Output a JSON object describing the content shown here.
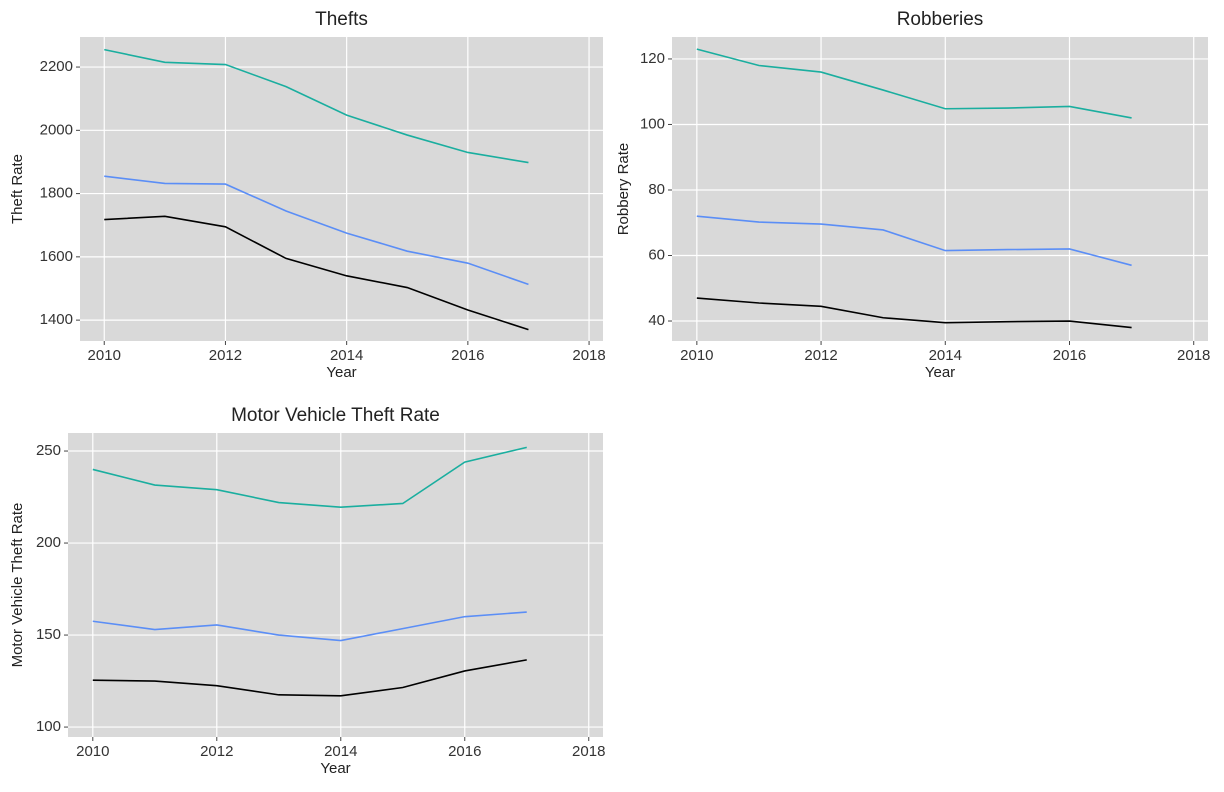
{
  "chart_data": [
    {
      "type": "line",
      "title": "Thefts",
      "x_label": "Year",
      "y_label": "Theft Rate",
      "x": [
        2010,
        2011,
        2012,
        2013,
        2014,
        2015,
        2016,
        2017
      ],
      "xlim": [
        2009.6,
        2018.23
      ],
      "xticks": [
        2010,
        2012,
        2014,
        2016,
        2018
      ],
      "ylim": [
        1334,
        2295
      ],
      "yticks": [
        1400,
        1600,
        1800,
        2000,
        2200
      ],
      "grid": true,
      "series": [
        {
          "color": "#1aae9f",
          "values": [
            2255,
            2215,
            2208,
            2138,
            2048,
            1985,
            1930,
            1898
          ]
        },
        {
          "color": "#5b8ef6",
          "values": [
            1855,
            1832,
            1830,
            1745,
            1675,
            1618,
            1580,
            1513
          ]
        },
        {
          "color": "#000000",
          "values": [
            1718,
            1728,
            1695,
            1595,
            1540,
            1503,
            1432,
            1370
          ]
        }
      ]
    },
    {
      "type": "line",
      "title": "Robberies",
      "x_label": "Year",
      "y_label": "Robbery Rate",
      "x": [
        2010,
        2011,
        2012,
        2013,
        2014,
        2015,
        2016,
        2017
      ],
      "xlim": [
        2009.6,
        2018.23
      ],
      "xticks": [
        2010,
        2012,
        2014,
        2016,
        2018
      ],
      "ylim": [
        33.9,
        126.7
      ],
      "yticks": [
        40,
        60,
        80,
        100,
        120
      ],
      "grid": true,
      "series": [
        {
          "color": "#1aae9f",
          "values": [
            123,
            118,
            116,
            110.5,
            104.8,
            105,
            105.5,
            102
          ]
        },
        {
          "color": "#5b8ef6",
          "values": [
            72,
            70.2,
            69.6,
            67.8,
            61.5,
            61.8,
            62,
            57
          ]
        },
        {
          "color": "#000000",
          "values": [
            47,
            45.5,
            44.5,
            41,
            39.5,
            39.8,
            40,
            38
          ]
        }
      ]
    },
    {
      "type": "line",
      "title": "Motor Vehicle Theft Rate",
      "x_label": "Year",
      "y_label": "Motor Vehicle Theft Rate",
      "x": [
        2010,
        2011,
        2012,
        2013,
        2014,
        2015,
        2016,
        2017
      ],
      "xlim": [
        2009.6,
        2018.23
      ],
      "xticks": [
        2010,
        2012,
        2014,
        2016,
        2018
      ],
      "ylim": [
        94.6,
        259.8
      ],
      "yticks": [
        100,
        150,
        200,
        250
      ],
      "grid": true,
      "series": [
        {
          "color": "#1aae9f",
          "values": [
            240,
            231.5,
            229,
            222,
            219.5,
            221.5,
            244,
            252
          ]
        },
        {
          "color": "#5b8ef6",
          "values": [
            157.5,
            153,
            155.5,
            150,
            147,
            153.5,
            160,
            162.5
          ]
        },
        {
          "color": "#000000",
          "values": [
            125.5,
            125,
            122.5,
            117.5,
            117,
            121.5,
            130.5,
            136.5
          ]
        }
      ]
    }
  ]
}
